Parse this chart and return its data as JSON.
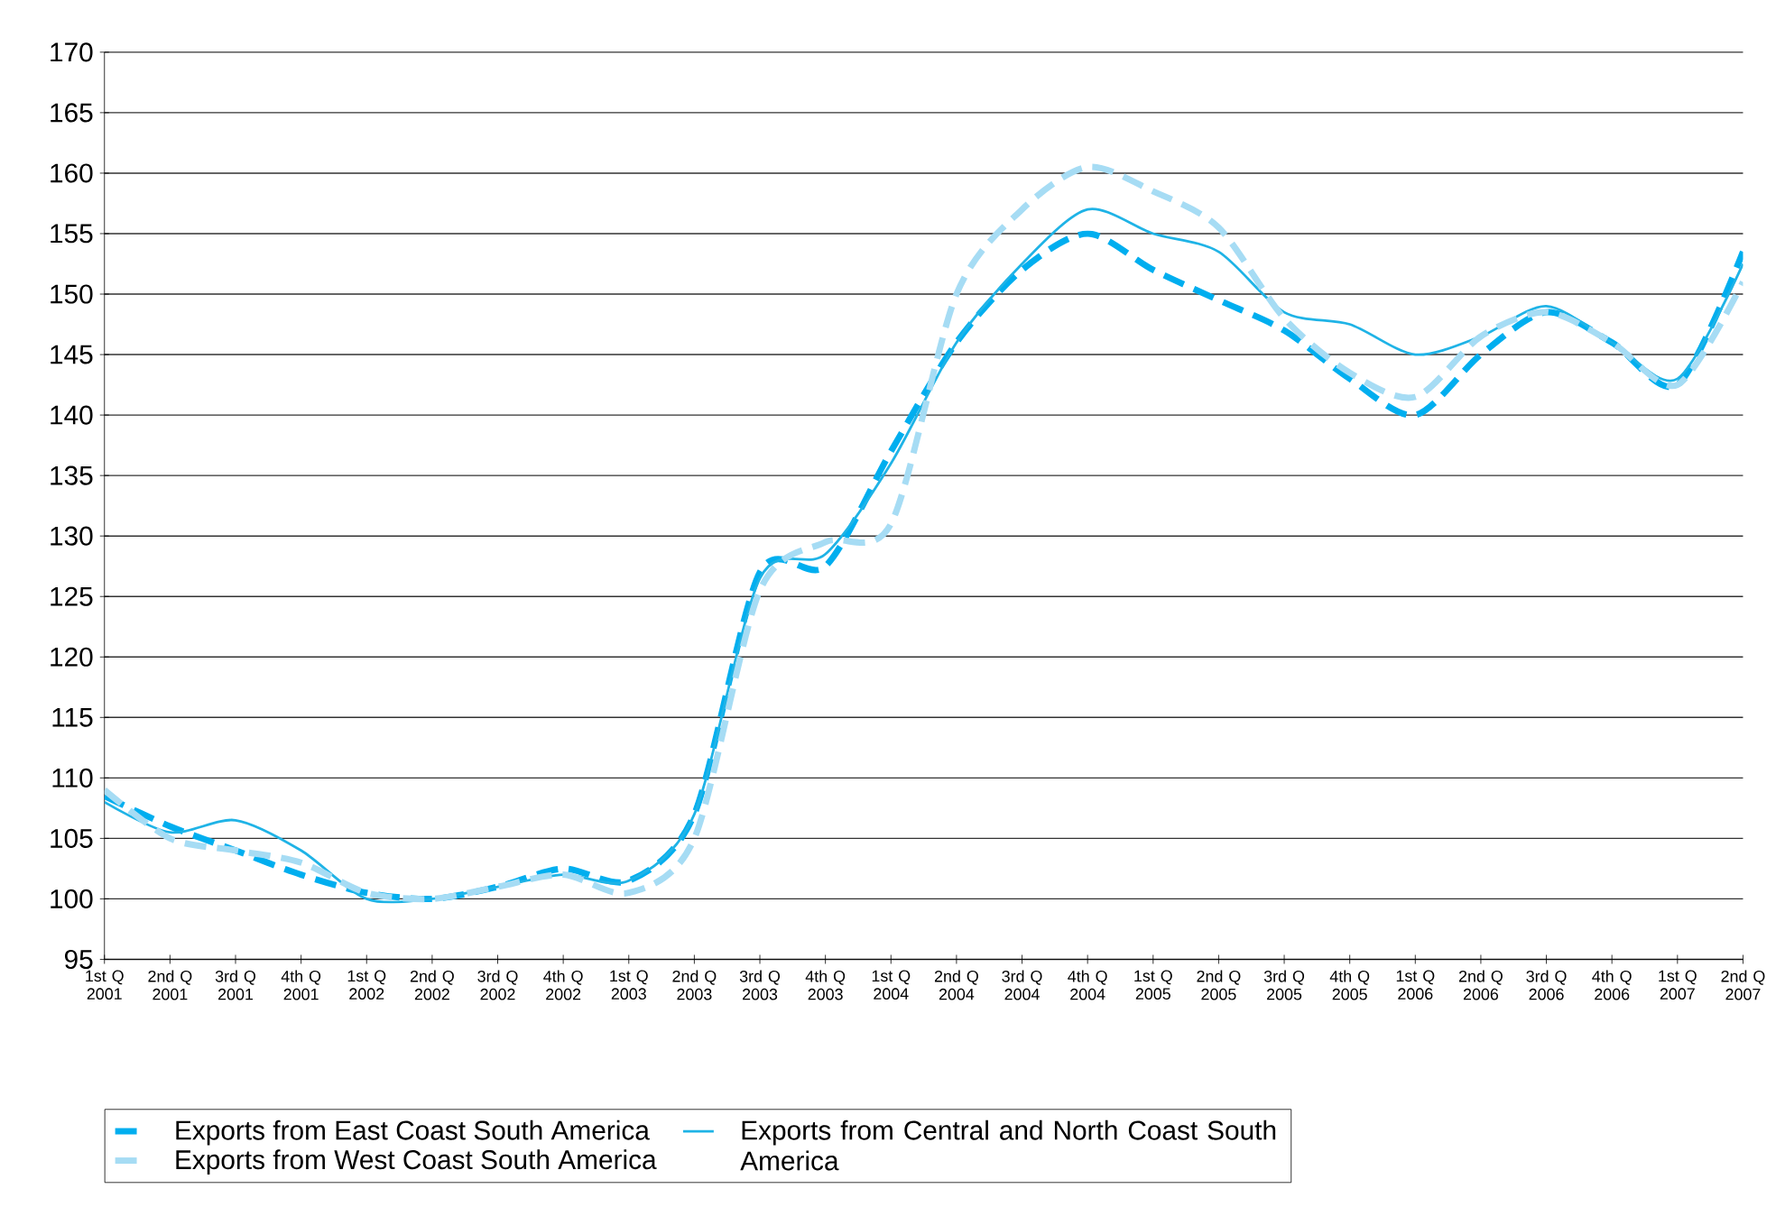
{
  "chart_data": {
    "type": "line",
    "categories": [
      "1st Q 2001",
      "2nd Q 2001",
      "3rd Q 2001",
      "4th Q 2001",
      "1st Q 2002",
      "2nd Q 2002",
      "3rd Q 2002",
      "4th Q 2002",
      "1st Q 2003",
      "2nd Q 2003",
      "3rd Q 2003",
      "4th Q 2003",
      "1st Q 2004",
      "2nd Q 2004",
      "3rd Q 2004",
      "4th Q 2004",
      "1st Q 2005",
      "2nd Q 2005",
      "3rd Q 2005",
      "4th Q 2005",
      "1st Q 2006",
      "2nd Q 2006",
      "3rd Q 2006",
      "4th Q 2006",
      "1st Q 2007",
      "2nd Q 2007"
    ],
    "series": [
      {
        "name": "Exports from East Coast South America",
        "color": "#00aeef",
        "line_style": "dashed",
        "values": [
          108.5,
          106,
          104,
          102,
          100.5,
          100,
          101,
          102.5,
          101.5,
          107,
          127,
          127.5,
          137,
          146,
          152,
          155,
          152,
          149.5,
          147,
          143,
          140,
          145,
          148.5,
          146,
          142.5,
          153.5
        ]
      },
      {
        "name": "Exports from Central and North Coast South America",
        "color": "#1fb3e6",
        "line_style": "solid",
        "values": [
          108,
          105.5,
          106.5,
          104,
          100,
          100,
          101,
          102,
          101.5,
          107,
          126.5,
          128.5,
          136,
          146,
          152.5,
          157,
          155,
          153.5,
          148.5,
          147.5,
          145,
          146.5,
          149,
          146,
          143,
          152.5
        ]
      },
      {
        "name": "Exports from West Coast South America",
        "color": "#a6dcf4",
        "line_style": "dashed",
        "values": [
          109,
          105,
          104,
          103,
          100.5,
          100,
          101,
          102,
          100.5,
          105,
          125.5,
          129.5,
          131,
          150,
          157,
          160.5,
          158.5,
          155.5,
          148,
          143.5,
          141.5,
          146.5,
          148.5,
          146,
          142.5,
          151
        ]
      }
    ],
    "ylim": [
      95,
      170
    ],
    "yticks": [
      95,
      100,
      105,
      110,
      115,
      120,
      125,
      130,
      135,
      140,
      145,
      150,
      155,
      160,
      165,
      170
    ],
    "grid": "y",
    "legend": "bottom"
  }
}
